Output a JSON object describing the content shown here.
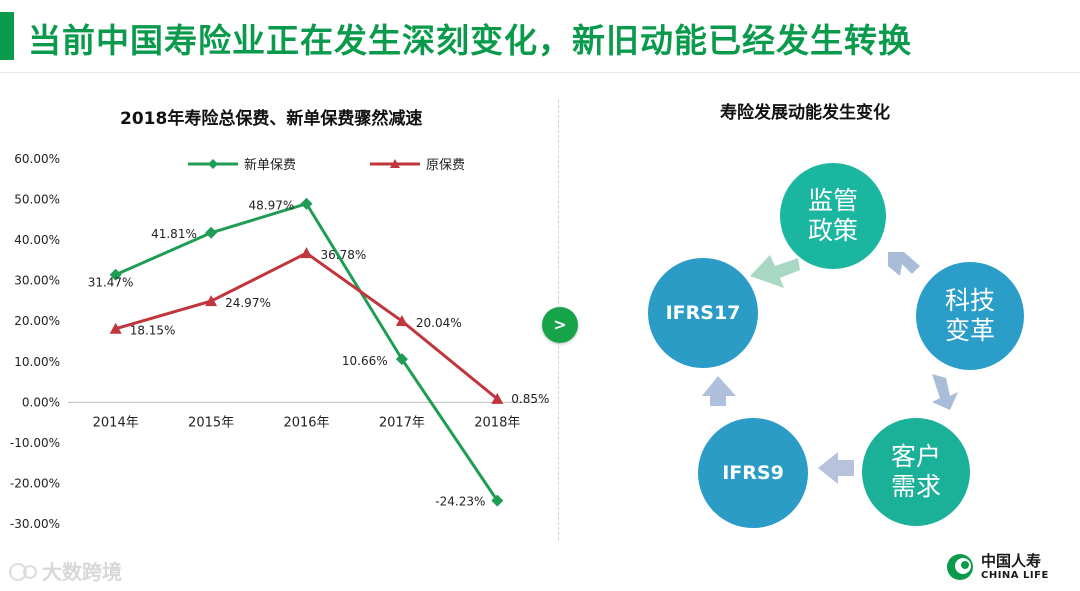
{
  "header": {
    "title": "当前中国寿险业正在发生深刻变化，新旧动能已经发生转换"
  },
  "left_panel": {
    "title": "2018年寿险总保费、新单保费骤然减速"
  },
  "right_panel": {
    "title": "寿险发展动能发生变化",
    "nodes": {
      "policy": "监管政策",
      "tech": "科技变革",
      "customer": "客户需求",
      "ifrs9": "IFRS9",
      "ifrs17": "IFRS17"
    }
  },
  "middle": {
    "arrow_label": ">"
  },
  "footer": {
    "watermark": "大数跨境",
    "brand_cn": "中国人寿",
    "brand_en": "CHINA LIFE"
  },
  "colors": {
    "green": "#1f9d55",
    "red": "#c0363c",
    "brand": "#0a9a4c"
  },
  "chart_data": {
    "type": "line",
    "categories": [
      "2014年",
      "2015年",
      "2016年",
      "2017年",
      "2018年"
    ],
    "ylim": [
      -30,
      60
    ],
    "yticks": [
      "60.00%",
      "50.00%",
      "40.00%",
      "30.00%",
      "20.00%",
      "10.00%",
      "0.00%",
      "-10.00%",
      "-20.00%",
      "-30.00%"
    ],
    "series": [
      {
        "name": "新单保费",
        "values": [
          31.47,
          41.81,
          48.97,
          10.66,
          -24.23
        ],
        "labels": [
          "31.47%",
          "41.81%",
          "48.97%",
          "10.66%",
          "-24.23%"
        ],
        "color": "#1f9d55",
        "marker": "diamond"
      },
      {
        "name": "原保费",
        "values": [
          18.15,
          24.97,
          36.78,
          20.04,
          0.85
        ],
        "labels": [
          "18.15%",
          "24.97%",
          "36.78%",
          "20.04%",
          "0.85%"
        ],
        "color": "#c0363c",
        "marker": "triangle"
      }
    ],
    "legend": "top",
    "grid": false
  }
}
